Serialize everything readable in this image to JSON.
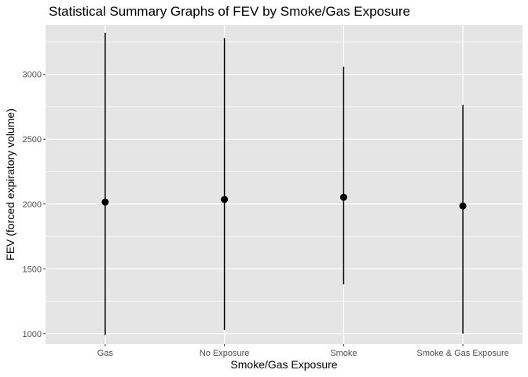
{
  "chart_data": {
    "type": "pointrange",
    "title": "Statistical Summary Graphs of FEV by Smoke/Gas Exposure",
    "xlabel": "Smoke/Gas Exposure",
    "ylabel": "FEV (forced expiratory volume)",
    "categories": [
      "Gas",
      "No Exposure",
      "Smoke",
      "Smoke & Gas Exposure"
    ],
    "y_ticks": [
      1000,
      1500,
      2000,
      2500,
      3000
    ],
    "ylim": [
      920,
      3380
    ],
    "series": [
      {
        "mean": [
          2015,
          2035,
          2052,
          1985
        ],
        "ymin": [
          990,
          1030,
          1380,
          1000
        ],
        "ymax": [
          3320,
          3280,
          3060,
          2765
        ]
      }
    ],
    "grid": true,
    "legend": "none",
    "colors": {
      "panel": "#e5e5e5",
      "grid": "#ffffff",
      "mark": "#000000",
      "tick_text": "#4d4d4d"
    }
  }
}
